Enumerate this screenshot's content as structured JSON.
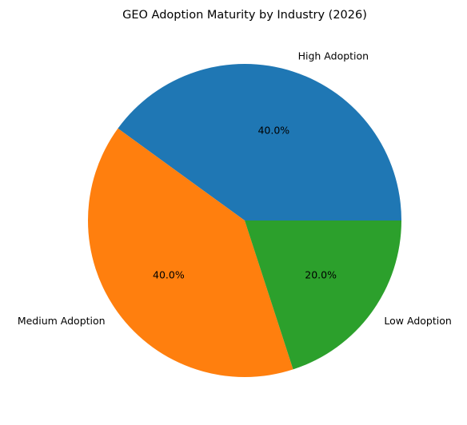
{
  "chart_data": {
    "type": "pie",
    "title": "GEO Adoption Maturity by Industry (2026)",
    "categories": [
      "High Adoption",
      "Medium Adoption",
      "Low Adoption"
    ],
    "values": [
      40.0,
      40.0,
      20.0
    ],
    "percent_labels": [
      "40.0%",
      "40.0%",
      "20.0%"
    ],
    "colors": [
      "#1f77b4",
      "#ff7f0e",
      "#2ca02c"
    ],
    "start_angle": "0 degrees (3 o'clock), counter-clockwise",
    "legend": "none"
  }
}
